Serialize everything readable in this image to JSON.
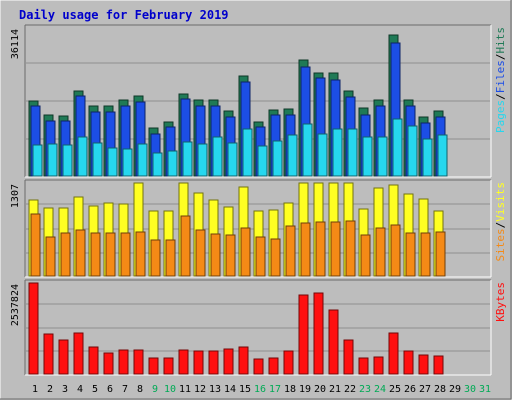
{
  "chart_data": [
    {
      "type": "bar",
      "title": "Daily usage for February 2019",
      "ymax_label": "36114",
      "legend": [
        "Pages",
        "Files",
        "Hits"
      ],
      "legend_separator": "/",
      "categories": [
        "1",
        "2",
        "3",
        "4",
        "5",
        "6",
        "7",
        "8",
        "9",
        "10",
        "11",
        "12",
        "13",
        "14",
        "15",
        "16",
        "17",
        "18",
        "19",
        "20",
        "21",
        "22",
        "23",
        "24",
        "25",
        "26",
        "27",
        "28",
        "29",
        "30",
        "31"
      ],
      "weekend_days": [
        "9",
        "10",
        "16",
        "17",
        "23",
        "24",
        "30",
        "31"
      ],
      "ylim": [
        0,
        36114
      ],
      "series": [
        {
          "name": "Hits",
          "color": "#1f7a56",
          "values": [
            18400,
            14900,
            14600,
            20700,
            17000,
            17000,
            18500,
            19400,
            11700,
            13200,
            19900,
            18600,
            18500,
            15800,
            24500,
            13200,
            16200,
            16300,
            28300,
            25200,
            25200,
            20800,
            16600,
            18600,
            34400,
            18500,
            14400,
            15900,
            0,
            0,
            0
          ]
        },
        {
          "name": "Files",
          "color": "#1c4ee6",
          "values": [
            17000,
            13500,
            13400,
            19500,
            15700,
            15700,
            17100,
            18000,
            10200,
            12000,
            18700,
            17200,
            17200,
            14400,
            23000,
            12000,
            14800,
            14800,
            26600,
            23900,
            23500,
            19200,
            15000,
            17100,
            32400,
            17000,
            12900,
            14400,
            0,
            0,
            0
          ]
        },
        {
          "name": "Pages",
          "color": "#26d7ee",
          "values": [
            7500,
            7800,
            7500,
            9600,
            8000,
            6800,
            6600,
            7800,
            5500,
            6200,
            8300,
            7800,
            9500,
            8000,
            11400,
            7400,
            8500,
            10000,
            12800,
            10300,
            11400,
            11400,
            9400,
            9500,
            13800,
            12200,
            9000,
            9900,
            0,
            0,
            0
          ]
        }
      ]
    },
    {
      "type": "bar",
      "ymax_label": "1307",
      "legend": [
        "Sites",
        "Visits"
      ],
      "legend_separator": "/",
      "ylim": [
        0,
        1307
      ],
      "series": [
        {
          "name": "Visits",
          "color": "#ffff22",
          "values": [
            1072,
            950,
            950,
            1109,
            978,
            1022,
            1008,
            1307,
            909,
            915,
            1307,
            1160,
            1072,
            968,
            1256,
            917,
            927,
            1028,
            1307,
            1307,
            1307,
            1307,
            943,
            1233,
            1277,
            1150,
            1080,
            909,
            0,
            0,
            0
          ]
        },
        {
          "name": "Sites",
          "color": "#f58a16",
          "values": [
            870,
            550,
            600,
            640,
            611,
            600,
            611,
            618,
            511,
            511,
            842,
            645,
            590,
            577,
            670,
            545,
            522,
            700,
            740,
            760,
            760,
            770,
            580,
            680,
            720,
            611,
            611,
            620,
            0,
            0,
            0
          ]
        }
      ]
    },
    {
      "type": "bar",
      "ymax_label": "2537824",
      "legend": [
        "KBytes"
      ],
      "ylim": [
        0,
        2537824
      ],
      "series": [
        {
          "name": "KBytes",
          "color": "#ff1010",
          "values": [
            2537824,
            1103000,
            943000,
            1150000,
            755000,
            595000,
            680000,
            680000,
            440000,
            460000,
            670000,
            630000,
            630000,
            700000,
            760000,
            420000,
            455000,
            650000,
            2207000,
            2270000,
            1780000,
            943000,
            455000,
            470000,
            1150000,
            650000,
            540000,
            490000,
            0,
            0,
            0
          ]
        }
      ]
    }
  ]
}
